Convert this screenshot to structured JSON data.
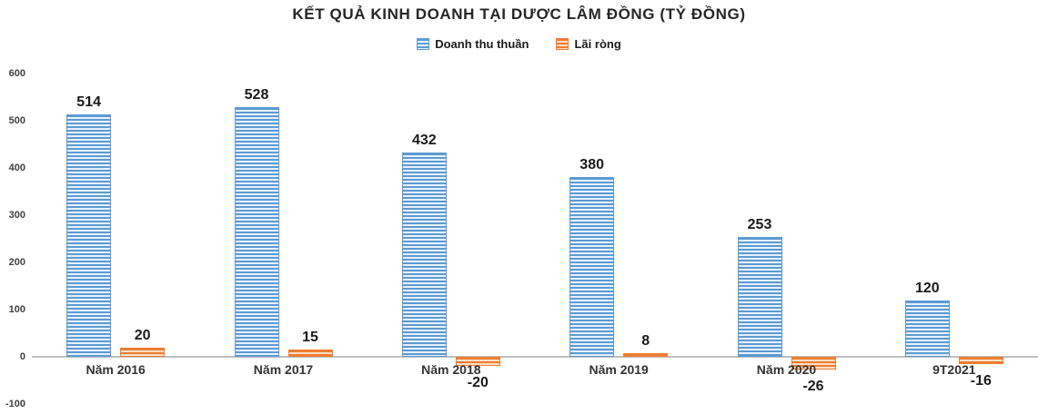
{
  "chart_data": {
    "type": "bar",
    "title": "KẾT QUẢ KINH DOANH TẠI DƯỢC LÂM ĐỒNG (TỶ ĐỒNG)",
    "categories": [
      "Năm 2016",
      "Năm 2017",
      "Năm 2018",
      "Năm 2019",
      "Năm 2020",
      "9T2021"
    ],
    "series": [
      {
        "name": "Doanh thu thuần",
        "color": "#5B9BD5",
        "color_light": "#E8F1FA",
        "values": [
          514,
          528,
          432,
          380,
          253,
          120
        ]
      },
      {
        "name": "Lãi ròng",
        "color": "#ED7D31",
        "color_light": "#FBDFC9",
        "values": [
          20,
          15,
          -20,
          8,
          -26,
          -16
        ]
      }
    ],
    "ylim": [
      -100,
      600
    ],
    "yticks": [
      600,
      500,
      400,
      300,
      200,
      100,
      0,
      -100
    ],
    "grid": false,
    "legend_position": "top",
    "axis_color": "#BFBFBF",
    "bar_pattern": "horizontal-stripes"
  }
}
